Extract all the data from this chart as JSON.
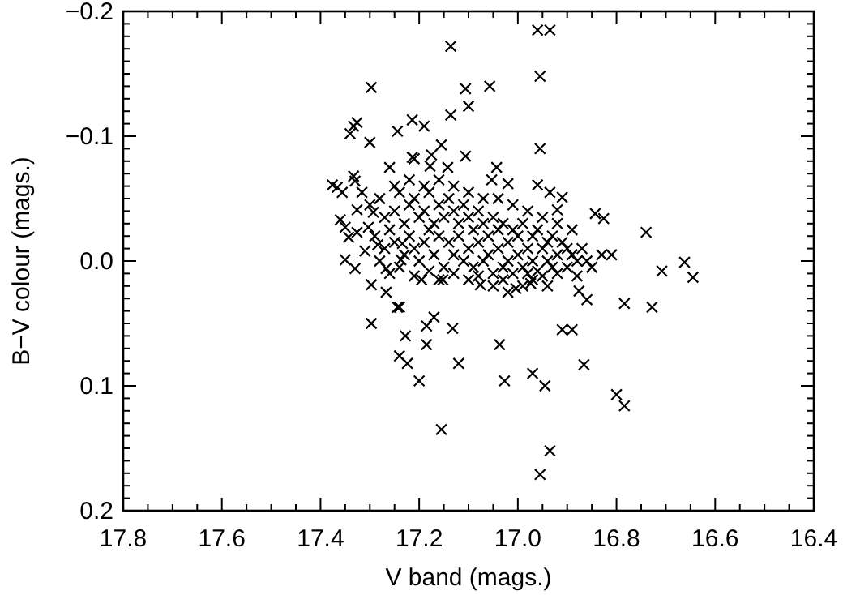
{
  "chart_data": {
    "type": "scatter",
    "xlabel": "V band (mags.)",
    "ylabel": "B−V colour (mags.)",
    "marker": "cross",
    "grid": false,
    "xlim": [
      17.8,
      16.4
    ],
    "ylim": [
      0.2,
      -0.2
    ],
    "xticks": [
      17.8,
      {
        "value": 17.75,
        "label": null
      },
      {
        "value": 17.7,
        "label": null
      },
      {
        "value": 17.65,
        "label": null
      },
      17.6,
      {
        "value": 17.55,
        "label": null
      },
      {
        "value": 17.5,
        "label": null
      },
      {
        "value": 17.45,
        "label": null
      },
      17.4,
      {
        "value": 17.35,
        "label": null
      },
      {
        "value": 17.3,
        "label": null
      },
      {
        "value": 17.25,
        "label": null
      },
      17.2,
      {
        "value": 17.15,
        "label": null
      },
      {
        "value": 17.1,
        "label": null
      },
      {
        "value": 17.05,
        "label": null
      },
      {
        "value": 17.0,
        "label": "17.0"
      },
      {
        "value": 16.95,
        "label": null
      },
      {
        "value": 16.9,
        "label": null
      },
      {
        "value": 16.85,
        "label": null
      },
      16.8,
      {
        "value": 16.75,
        "label": null
      },
      {
        "value": 16.7,
        "label": null
      },
      {
        "value": 16.65,
        "label": null
      },
      16.6,
      {
        "value": 16.55,
        "label": null
      },
      {
        "value": 16.5,
        "label": null
      },
      {
        "value": 16.45,
        "label": null
      },
      16.4
    ],
    "yticks": [
      {
        "value": -0.2,
        "label": "−0.2"
      },
      {
        "value": -0.19,
        "label": null
      },
      {
        "value": -0.18,
        "label": null
      },
      {
        "value": -0.17,
        "label": null
      },
      {
        "value": -0.16,
        "label": null
      },
      {
        "value": -0.15,
        "label": null
      },
      {
        "value": -0.14,
        "label": null
      },
      {
        "value": -0.13,
        "label": null
      },
      {
        "value": -0.12,
        "label": null
      },
      {
        "value": -0.11,
        "label": null
      },
      {
        "value": -0.1,
        "label": "−0.1"
      },
      {
        "value": -0.09,
        "label": null
      },
      {
        "value": -0.08,
        "label": null
      },
      {
        "value": -0.07,
        "label": null
      },
      {
        "value": -0.06,
        "label": null
      },
      {
        "value": -0.05,
        "label": null
      },
      {
        "value": -0.04,
        "label": null
      },
      {
        "value": -0.03,
        "label": null
      },
      {
        "value": -0.02,
        "label": null
      },
      {
        "value": -0.01,
        "label": null
      },
      {
        "value": 0.0,
        "label": "0.0"
      },
      {
        "value": 0.01,
        "label": null
      },
      {
        "value": 0.02,
        "label": null
      },
      {
        "value": 0.03,
        "label": null
      },
      {
        "value": 0.04,
        "label": null
      },
      {
        "value": 0.05,
        "label": null
      },
      {
        "value": 0.06,
        "label": null
      },
      {
        "value": 0.07,
        "label": null
      },
      {
        "value": 0.08,
        "label": null
      },
      {
        "value": 0.09,
        "label": null
      },
      0.1,
      {
        "value": 0.11,
        "label": null
      },
      {
        "value": 0.12,
        "label": null
      },
      {
        "value": 0.13,
        "label": null
      },
      {
        "value": 0.14,
        "label": null
      },
      {
        "value": 0.15,
        "label": null
      },
      {
        "value": 0.16,
        "label": null
      },
      {
        "value": 0.17,
        "label": null
      },
      {
        "value": 0.18,
        "label": null
      },
      {
        "value": 0.19,
        "label": null
      },
      0.2
    ],
    "series": [
      {
        "color": "#000000",
        "x": [
          16.96,
          16.935,
          17.136,
          16.955,
          17.106,
          17.057,
          17.1,
          17.136,
          17.214,
          17.19,
          17.244,
          17.155,
          16.955,
          17.175,
          17.214,
          17.106,
          17.178,
          17.142,
          17.043,
          17.26,
          17.053,
          17.02,
          16.96,
          16.935,
          16.91,
          16.92,
          16.843,
          16.826,
          16.74,
          16.662,
          16.708,
          16.645,
          16.81,
          17.297,
          17.326,
          17.333,
          17.34,
          17.3,
          17.21,
          17.366,
          17.356,
          17.333,
          17.33,
          17.316,
          17.376,
          17.36,
          17.326,
          17.35,
          17.343,
          17.326,
          17.303,
          17.293,
          17.31,
          17.35,
          17.33,
          17.297,
          17.267,
          17.267,
          17.237,
          17.234,
          17.284,
          17.24,
          17.297,
          17.228,
          17.24,
          17.224,
          17.2,
          17.244,
          17.185,
          17.17,
          17.185,
          17.132,
          17.12,
          17.155,
          17.037,
          17.027,
          16.97,
          16.945,
          16.935,
          16.955,
          16.91,
          16.89,
          16.866,
          16.8,
          16.784,
          16.784,
          16.728,
          16.86,
          16.876,
          17.02,
          17.004,
          16.99,
          16.974,
          16.94,
          17.076,
          17.195,
          17.152,
          17.3,
          17.28,
          17.27,
          17.25,
          17.24,
          17.23,
          17.22,
          17.21,
          17.2,
          17.19,
          17.18,
          17.17,
          17.16,
          17.15,
          17.14,
          17.13,
          17.12,
          17.11,
          17.1,
          17.09,
          17.08,
          17.07,
          17.06,
          17.05,
          17.04,
          17.03,
          17.02,
          17.01,
          17.0,
          16.99,
          16.98,
          16.97,
          16.96,
          16.95,
          16.94,
          16.93,
          16.92,
          16.91,
          16.9,
          16.89,
          16.88,
          16.87,
          16.86,
          17.29,
          17.27,
          17.26,
          17.25,
          17.23,
          17.22,
          17.21,
          17.2,
          17.19,
          17.18,
          17.17,
          17.16,
          17.15,
          17.14,
          17.13,
          17.12,
          17.11,
          17.1,
          17.09,
          17.08,
          17.07,
          17.06,
          17.05,
          17.04,
          17.03,
          17.02,
          17.01,
          17.0,
          16.99,
          16.98,
          16.97,
          16.96,
          16.95,
          16.94,
          16.93,
          16.92,
          16.9,
          16.88,
          16.85,
          16.83,
          17.25,
          17.22,
          17.19,
          17.16,
          17.13,
          17.1,
          17.07,
          17.04,
          17.01,
          16.98,
          16.95,
          16.92,
          16.89,
          17.28,
          17.26,
          17.24,
          17.21,
          17.18,
          17.16,
          17.13,
          17.1,
          17.08,
          17.05,
          17.03,
          16.97
        ],
        "values": [
          -0.185,
          -0.185,
          -0.172,
          -0.148,
          -0.138,
          -0.14,
          -0.124,
          -0.117,
          -0.113,
          -0.108,
          -0.104,
          -0.093,
          -0.09,
          -0.085,
          -0.083,
          -0.084,
          -0.076,
          -0.075,
          -0.075,
          -0.075,
          -0.065,
          -0.062,
          -0.061,
          -0.055,
          -0.051,
          -0.041,
          -0.038,
          -0.034,
          -0.023,
          0.001,
          0.008,
          0.013,
          -0.005,
          -0.139,
          -0.111,
          -0.108,
          -0.102,
          -0.095,
          -0.082,
          -0.059,
          -0.055,
          -0.068,
          -0.064,
          -0.055,
          -0.061,
          -0.033,
          -0.041,
          -0.027,
          -0.019,
          -0.023,
          -0.027,
          -0.039,
          -0.008,
          -0.001,
          0.006,
          0.019,
          0.025,
          0.006,
          -0.001,
          -0.014,
          -0.013,
          0.037,
          0.05,
          0.06,
          0.076,
          0.082,
          0.096,
          0.037,
          0.052,
          0.045,
          0.067,
          0.054,
          0.082,
          0.135,
          0.067,
          0.096,
          0.09,
          0.1,
          0.152,
          0.171,
          0.055,
          0.055,
          0.083,
          0.107,
          0.116,
          0.034,
          0.037,
          0.031,
          0.024,
          0.025,
          0.022,
          0.02,
          0.018,
          0.02,
          0.019,
          0.015,
          0.015,
          -0.045,
          -0.05,
          -0.035,
          -0.04,
          -0.055,
          -0.03,
          -0.045,
          -0.05,
          -0.035,
          -0.04,
          -0.055,
          -0.03,
          -0.045,
          -0.035,
          -0.05,
          -0.04,
          -0.03,
          -0.045,
          -0.035,
          -0.025,
          -0.04,
          -0.03,
          -0.02,
          -0.035,
          -0.025,
          -0.03,
          -0.015,
          -0.025,
          -0.02,
          -0.03,
          -0.01,
          -0.02,
          -0.025,
          -0.01,
          -0.015,
          -0.02,
          -0.005,
          -0.015,
          -0.01,
          -0.005,
          0.0,
          -0.01,
          0.0,
          -0.02,
          -0.01,
          -0.025,
          -0.015,
          -0.005,
          -0.02,
          -0.01,
          0.0,
          -0.015,
          -0.025,
          -0.005,
          -0.02,
          0.005,
          -0.015,
          -0.005,
          -0.02,
          0.0,
          -0.01,
          0.005,
          -0.015,
          0.0,
          -0.005,
          0.01,
          -0.01,
          0.005,
          0.0,
          0.01,
          -0.005,
          0.005,
          0.01,
          0.0,
          0.008,
          0.012,
          0.0,
          0.005,
          0.01,
          0.005,
          0.012,
          0.005,
          -0.005,
          -0.06,
          -0.065,
          -0.06,
          -0.065,
          -0.06,
          -0.055,
          -0.05,
          -0.05,
          -0.045,
          -0.04,
          -0.035,
          -0.03,
          -0.025,
          0.0,
          0.01,
          0.005,
          0.012,
          0.008,
          0.015,
          0.01,
          0.015,
          0.012,
          0.02,
          0.015,
          0.015
        ]
      }
    ]
  }
}
